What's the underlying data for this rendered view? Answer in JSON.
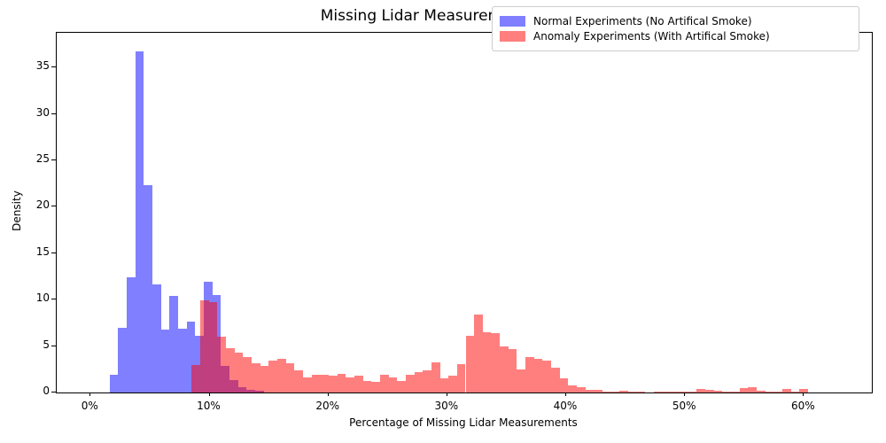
{
  "title": "Missing Lidar Measurements per Scan",
  "xlabel": "Percentage of Missing Lidar Measurements",
  "ylabel": "Density",
  "legend": {
    "items": [
      {
        "label": "Normal Experiments (No Artifical Smoke)",
        "color": "rgba(0,0,255,0.5)"
      },
      {
        "label": "Anomaly Experiments (With Artifical Smoke)",
        "color": "rgba(255,0,0,0.5)"
      }
    ]
  },
  "chart_data": {
    "type": "bar",
    "subtype": "overlapping-histograms",
    "title": "Missing Lidar Measurements per Scan",
    "xlabel": "Percentage of Missing Lidar Measurements",
    "ylabel": "Density",
    "grid": false,
    "legend_position": "upper right",
    "xlim_pct": [
      -2.857,
      65.714
    ],
    "ylim": [
      0,
      38.74
    ],
    "x_ticks": [
      {
        "pct": 0,
        "label": "0%"
      },
      {
        "pct": 10,
        "label": "10%"
      },
      {
        "pct": 20,
        "label": "20%"
      },
      {
        "pct": 30,
        "label": "30%"
      },
      {
        "pct": 40,
        "label": "40%"
      },
      {
        "pct": 50,
        "label": "50%"
      },
      {
        "pct": 60,
        "label": "60%"
      }
    ],
    "y_ticks": [
      0,
      5,
      10,
      15,
      20,
      25,
      30,
      35
    ],
    "series": [
      {
        "name": "Normal Experiments (No Artifical Smoke)",
        "color": "rgba(0,0,255,0.5)",
        "css_class": "blue",
        "bin_start_pct": 1.6,
        "bin_width_pct": 0.72,
        "densities": [
          1.9,
          7.0,
          12.4,
          36.7,
          22.3,
          11.6,
          6.8,
          10.4,
          6.9,
          7.6,
          6.1,
          11.9,
          10.5,
          2.9,
          1.3,
          0.6,
          0.3,
          0.15
        ]
      },
      {
        "name": "Anomaly Experiments (With Artifical Smoke)",
        "color": "rgba(255,0,0,0.5)",
        "css_class": "red",
        "bin_start_pct": 8.5,
        "bin_width_pct": 0.72,
        "densities": [
          3.0,
          9.9,
          9.7,
          6.0,
          4.8,
          4.3,
          3.85,
          3.15,
          2.9,
          3.4,
          3.6,
          3.15,
          2.4,
          1.6,
          1.9,
          1.9,
          1.8,
          2.0,
          1.6,
          1.8,
          1.2,
          1.1,
          1.9,
          1.6,
          1.2,
          1.9,
          2.2,
          2.4,
          3.2,
          1.5,
          1.8,
          3.05,
          6.1,
          8.4,
          6.5,
          6.4,
          5.0,
          4.7,
          2.5,
          3.85,
          3.6,
          3.4,
          2.7,
          1.5,
          0.8,
          0.6,
          0.3,
          0.25,
          0.1,
          0.05,
          0.2,
          0.05,
          0.05,
          0,
          0.05,
          0.05,
          0.1,
          0.05,
          0.1,
          0.35,
          0.3,
          0.2,
          0.1,
          0.05,
          0.5,
          0.55,
          0.2,
          0.1,
          0.05,
          0.4,
          0.1,
          0.35
        ]
      }
    ]
  }
}
